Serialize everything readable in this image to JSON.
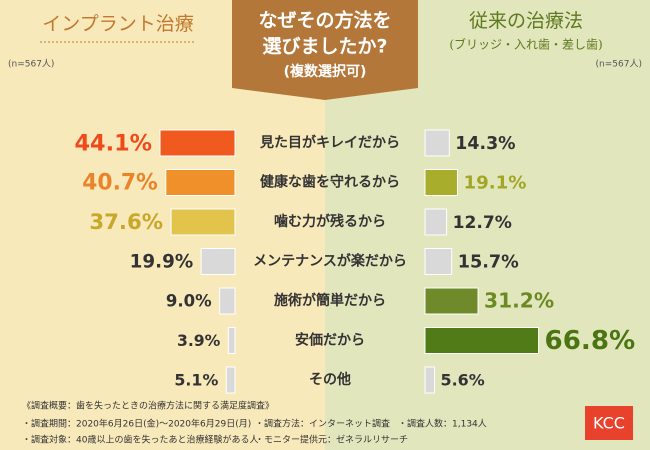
{
  "header": {
    "center_title": [
      "なぜその方法を",
      "選びましたか?"
    ],
    "center_subtitle": "(複数選択可)",
    "right_subtitle": "(ブリッジ・入れ歯・差し歯)",
    "left_n": "(n=567人)",
    "right_n": "(n=567人)"
  },
  "chart_data": {
    "type": "butterfly-bar",
    "categories": [
      "見た目がキレイだから",
      "健康な歯を守れるから",
      "噛む力が残るから",
      "メンテナンスが楽だから",
      "施術が簡単だから",
      "安価だから",
      "その他"
    ],
    "series": [
      {
        "name": "インプラント治療",
        "values": [
          44.1,
          40.7,
          37.6,
          19.9,
          9.0,
          3.9,
          5.1
        ],
        "value_labels": [
          "44.1%",
          "40.7%",
          "37.6%",
          "19.9%",
          "9.0%",
          "3.9%",
          "5.1%"
        ],
        "colors": [
          "#f05a1e",
          "#f0902a",
          "#e2c44c",
          "#d9d9d9",
          "#d9d9d9",
          "#d9d9d9",
          "#d9d9d9"
        ],
        "label_colors": [
          "#ef4a1a",
          "#e9842a",
          "#c8a72a",
          "#333333",
          "#333333",
          "#333333",
          "#333333"
        ]
      },
      {
        "name": "従来の治療法",
        "values": [
          14.3,
          19.1,
          12.7,
          15.7,
          31.2,
          66.8,
          5.6
        ],
        "value_labels": [
          "14.3%",
          "19.1%",
          "12.7%",
          "15.7%",
          "31.2%",
          "66.8%",
          "5.6%"
        ],
        "colors": [
          "#d9d9d9",
          "#a9ad2c",
          "#d9d9d9",
          "#d9d9d9",
          "#6f8a2a",
          "#507b16",
          "#d9d9d9"
        ],
        "label_colors": [
          "#333333",
          "#a2a624",
          "#333333",
          "#333333",
          "#6c8a24",
          "#4b7512",
          "#333333"
        ]
      }
    ]
  },
  "footer": {
    "lines": [
      "《調査概要：歯を失ったときの治療方法に関する満足度調査》",
      "・調査期間：2020年6月26日(金)～2020年6月29日(月)",
      "・調査方法：インターネット調査",
      "・調査人数：1,134人",
      "・調査対象：40歳以上の歯を失ったあと治療経験がある人",
      "・モニター提供元：ゼネラルリサーチ"
    ],
    "logo": "KCC"
  }
}
